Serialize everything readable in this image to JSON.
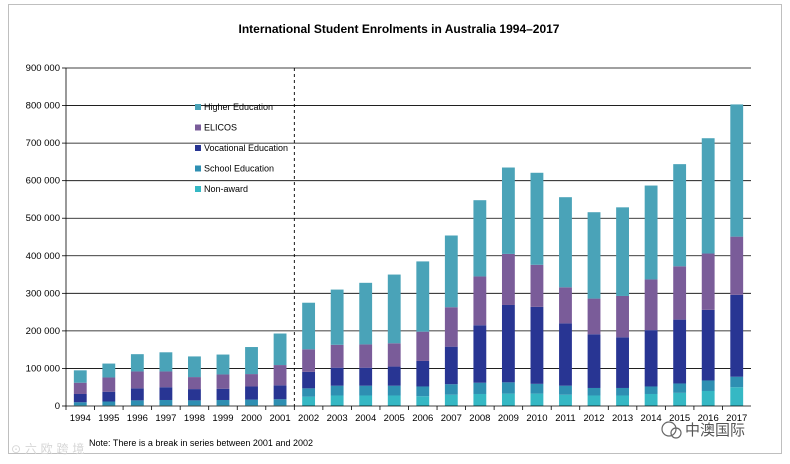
{
  "chart_data": {
    "type": "bar",
    "stacked": true,
    "title": "International Student Enrolments  in Australia 1994–2017",
    "xlabel": "",
    "ylabel": "",
    "ylim": [
      0,
      900000
    ],
    "yticks": [
      0,
      100000,
      200000,
      300000,
      400000,
      500000,
      600000,
      700000,
      800000,
      900000
    ],
    "ytick_labels": [
      "0",
      "100 000",
      "200 000",
      "300 000",
      "400 000",
      "500 000",
      "600 000",
      "700 000",
      "800 000",
      "900 000"
    ],
    "grid": true,
    "legend_position": "top-left",
    "categories": [
      "1994",
      "1995",
      "1996",
      "1997",
      "1998",
      "1999",
      "2000",
      "2001",
      "2002",
      "2003",
      "2004",
      "2005",
      "2006",
      "2007",
      "2008",
      "2009",
      "2010",
      "2011",
      "2012",
      "2013",
      "2014",
      "2015",
      "2016",
      "2017"
    ],
    "series": [
      {
        "name": "Non-award",
        "color": "#35b8c4",
        "values": [
          2000,
          2000,
          2000,
          2000,
          2000,
          2000,
          2000,
          2000,
          25000,
          28000,
          28000,
          28000,
          26000,
          30000,
          32000,
          33000,
          33000,
          30000,
          28000,
          28000,
          32000,
          35000,
          40000,
          50000
        ]
      },
      {
        "name": "School Education",
        "color": "#2e8fb2",
        "values": [
          8000,
          10000,
          13000,
          14000,
          13000,
          14000,
          15000,
          16000,
          22000,
          26000,
          26000,
          26000,
          26000,
          28000,
          30000,
          30000,
          26000,
          24000,
          20000,
          20000,
          20000,
          25000,
          28000,
          28000
        ]
      },
      {
        "name": "Vocational Education",
        "color": "#283593",
        "values": [
          22000,
          26000,
          32000,
          34000,
          30000,
          30000,
          35000,
          37000,
          44000,
          48000,
          48000,
          51000,
          68000,
          100000,
          153000,
          206000,
          205000,
          166000,
          143000,
          135000,
          150000,
          170000,
          188000,
          218000
        ]
      },
      {
        "name": "ELICOS",
        "color": "#7a5c99",
        "values": [
          30000,
          38000,
          45000,
          42000,
          32000,
          38000,
          33000,
          54000,
          60000,
          61000,
          62000,
          62000,
          78000,
          105000,
          130000,
          136000,
          112000,
          96000,
          95000,
          110000,
          135000,
          142000,
          150000,
          155000
        ]
      },
      {
        "name": "Higher Education",
        "color": "#4aa3b8",
        "values": [
          33000,
          37000,
          46000,
          51000,
          55000,
          53000,
          72000,
          84000,
          124000,
          147000,
          164000,
          183000,
          187000,
          191000,
          203000,
          230000,
          245000,
          240000,
          230000,
          236000,
          250000,
          272000,
          307000,
          352000
        ]
      }
    ],
    "legend_order": [
      "Higher Education",
      "ELICOS",
      "Vocational Education",
      "School Education",
      "Non-award"
    ],
    "break_after": "2001",
    "note": "Note: There is a break in series between 2001 and 2002"
  },
  "watermarks": {
    "left": "⊙ 六 欧 跨 境",
    "right": "中澳国际"
  }
}
